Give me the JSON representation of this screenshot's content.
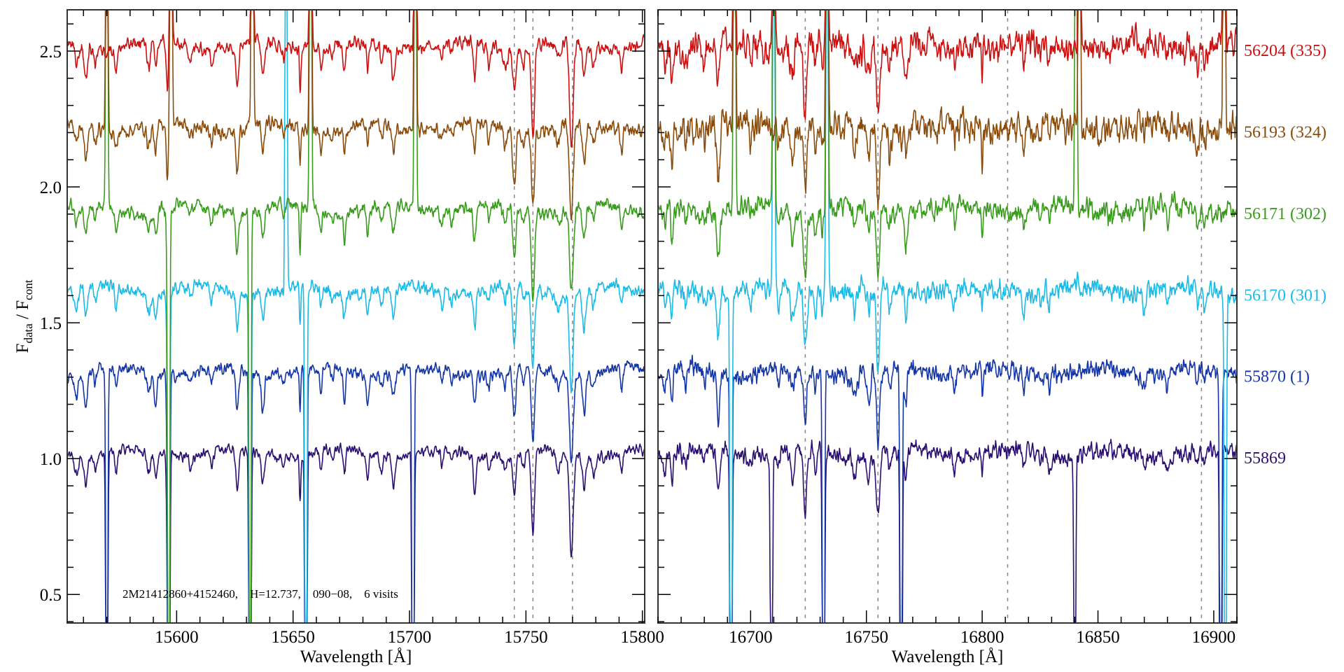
{
  "chart_data": {
    "type": "line",
    "title": "",
    "ylabel": {
      "main": "F",
      "sub1": "data",
      "mid": " / F",
      "sub2": "cont"
    },
    "xlabel": "Wavelength [Å]",
    "ylim": [
      0.395,
      2.652
    ],
    "yticks": [
      0.5,
      1.0,
      1.5,
      2.0,
      2.5
    ],
    "ytick_labels": [
      "0.5",
      "1.0",
      "1.5",
      "2.0",
      "2.5"
    ],
    "annotation": "2M21412860+4152460,    H=12.737,    090−08,    6 visits",
    "series": [
      {
        "name": "55869",
        "color": "#2b1072",
        "offset": 1.0,
        "noise": 0.018
      },
      {
        "name": "55870 (1)",
        "color": "#1536a6",
        "offset": 1.3,
        "noise": 0.02
      },
      {
        "name": "56170 (301)",
        "color": "#1cbbe6",
        "offset": 1.6,
        "noise": 0.022
      },
      {
        "name": "56171 (302)",
        "color": "#3a9c1c",
        "offset": 1.9,
        "noise": 0.022
      },
      {
        "name": "56193 (324)",
        "color": "#8a4c0c",
        "offset": 2.2,
        "noise": 0.024
      },
      {
        "name": "56204 (335)",
        "color": "#cc1111",
        "offset": 2.5,
        "noise": 0.024
      }
    ],
    "panels": [
      {
        "xlim": [
          15553,
          15801
        ],
        "xticks": [
          15600,
          15650,
          15700,
          15750,
          15800
        ],
        "xtick_labels": [
          "15600",
          "15650",
          "15700",
          "15750",
          "15800"
        ],
        "dashed_lines": [
          15745,
          15753,
          15770
        ],
        "absorption_lines": [
          [
            15557,
            0.07,
            0.8
          ],
          [
            15561,
            0.12,
            0.7
          ],
          [
            15565,
            0.05,
            0.6
          ],
          [
            15574,
            0.07,
            0.6
          ],
          [
            15588,
            0.08,
            0.8
          ],
          [
            15591,
            0.1,
            0.6
          ],
          [
            15596,
            0.2,
            0.4
          ],
          [
            15606,
            0.04,
            0.6
          ],
          [
            15615,
            0.05,
            0.6
          ],
          [
            15626,
            0.15,
            0.6
          ],
          [
            15637,
            0.12,
            0.6
          ],
          [
            15646,
            0.04,
            0.5
          ],
          [
            15653,
            0.16,
            0.3
          ],
          [
            15662,
            0.08,
            0.5
          ],
          [
            15667,
            0.04,
            0.5
          ],
          [
            15672,
            0.1,
            0.5
          ],
          [
            15682,
            0.1,
            0.5
          ],
          [
            15688,
            0.06,
            0.5
          ],
          [
            15693,
            0.1,
            0.7
          ],
          [
            15714,
            0.05,
            0.5
          ],
          [
            15718,
            0.04,
            0.5
          ],
          [
            15728,
            0.12,
            0.6
          ],
          [
            15734,
            0.06,
            0.5
          ],
          [
            15741,
            0.06,
            0.8
          ],
          [
            15745,
            0.18,
            0.7
          ],
          [
            15749,
            0.06,
            0.6
          ],
          [
            15753,
            0.3,
            0.7
          ],
          [
            15764,
            0.06,
            1.0
          ],
          [
            15769.5,
            0.34,
            0.8
          ],
          [
            15775,
            0.14,
            0.7
          ],
          [
            15779,
            0.06,
            0.8
          ],
          [
            15791,
            0.08,
            0.5
          ]
        ],
        "spikes": [
          [
            15570,
            2.5,
            [
              3,
              4
            ]
          ],
          [
            15570,
            -2.0,
            [
              0,
              1
            ]
          ],
          [
            15596.6,
            -3,
            [
              0,
              1,
              2,
              3
            ]
          ],
          [
            15597.6,
            3,
            [
              4,
              5
            ]
          ],
          [
            15631.5,
            -3,
            [
              0,
              1,
              2,
              3
            ]
          ],
          [
            15632.5,
            3,
            [
              4,
              5
            ]
          ],
          [
            15647,
            3,
            [
              2
            ]
          ],
          [
            15655.5,
            -3,
            [
              0,
              1,
              2
            ]
          ],
          [
            15657.5,
            3,
            [
              3,
              4,
              5
            ]
          ],
          [
            15701.5,
            -3,
            [
              0,
              1
            ]
          ],
          [
            15702.5,
            3,
            [
              3,
              4,
              5
            ]
          ]
        ]
      },
      {
        "xlim": [
          16660,
          16910
        ],
        "xticks": [
          16700,
          16750,
          16800,
          16850,
          16900
        ],
        "xtick_labels": [
          "16700",
          "16750",
          "16800",
          "16850",
          "16900"
        ],
        "dashed_lines": [
          16723.6,
          16755,
          16811,
          16894.7
        ],
        "absorption_lines": [
          [
            16663,
            0.08,
            0.5
          ],
          [
            16666,
            0.12,
            0.5
          ],
          [
            16672,
            0.06,
            0.5
          ],
          [
            16680,
            0.05,
            0.5
          ],
          [
            16686,
            0.18,
            0.6
          ],
          [
            16700,
            0.04,
            0.5
          ],
          [
            16712,
            0.06,
            0.5
          ],
          [
            16718,
            0.1,
            0.9
          ],
          [
            16723.5,
            0.22,
            0.7
          ],
          [
            16728,
            0.08,
            0.5
          ],
          [
            16731,
            0.1,
            0.4
          ],
          [
            16745,
            0.08,
            0.8
          ],
          [
            16751,
            0.1,
            0.8
          ],
          [
            16755,
            0.27,
            0.7
          ],
          [
            16760,
            0.08,
            0.5
          ],
          [
            16767,
            0.14,
            0.5
          ],
          [
            16788,
            0.05,
            0.5
          ],
          [
            16800,
            0.1,
            0.3
          ],
          [
            16818,
            0.07,
            0.5
          ],
          [
            16825,
            0.06,
            0.4
          ],
          [
            16829,
            0.06,
            0.4
          ],
          [
            16870,
            0.06,
            0.5
          ],
          [
            16880,
            0.06,
            0.5
          ],
          [
            16893,
            0.07,
            0.5
          ],
          [
            16896,
            0.06,
            0.5
          ]
        ],
        "spikes": [
          [
            16691.5,
            -3,
            [
              0,
              1,
              2
            ]
          ],
          [
            16693,
            3,
            [
              3,
              4,
              5
            ]
          ],
          [
            16709,
            -2,
            [
              0
            ]
          ],
          [
            16710,
            3,
            [
              2,
              3,
              5
            ]
          ],
          [
            16731.5,
            -3,
            [
              0,
              1
            ]
          ],
          [
            16733,
            3,
            [
              2,
              3,
              4,
              5
            ]
          ],
          [
            16765,
            -3,
            [
              0,
              1
            ]
          ],
          [
            16840,
            -1.5,
            [
              0
            ]
          ],
          [
            16840.5,
            3,
            [
              3
            ]
          ],
          [
            16842,
            3,
            [
              4,
              5
            ]
          ],
          [
            16903,
            -3,
            [
              0,
              1
            ]
          ],
          [
            16905,
            -3,
            [
              2
            ]
          ],
          [
            16904.5,
            3,
            [
              4,
              5
            ]
          ]
        ]
      }
    ]
  }
}
